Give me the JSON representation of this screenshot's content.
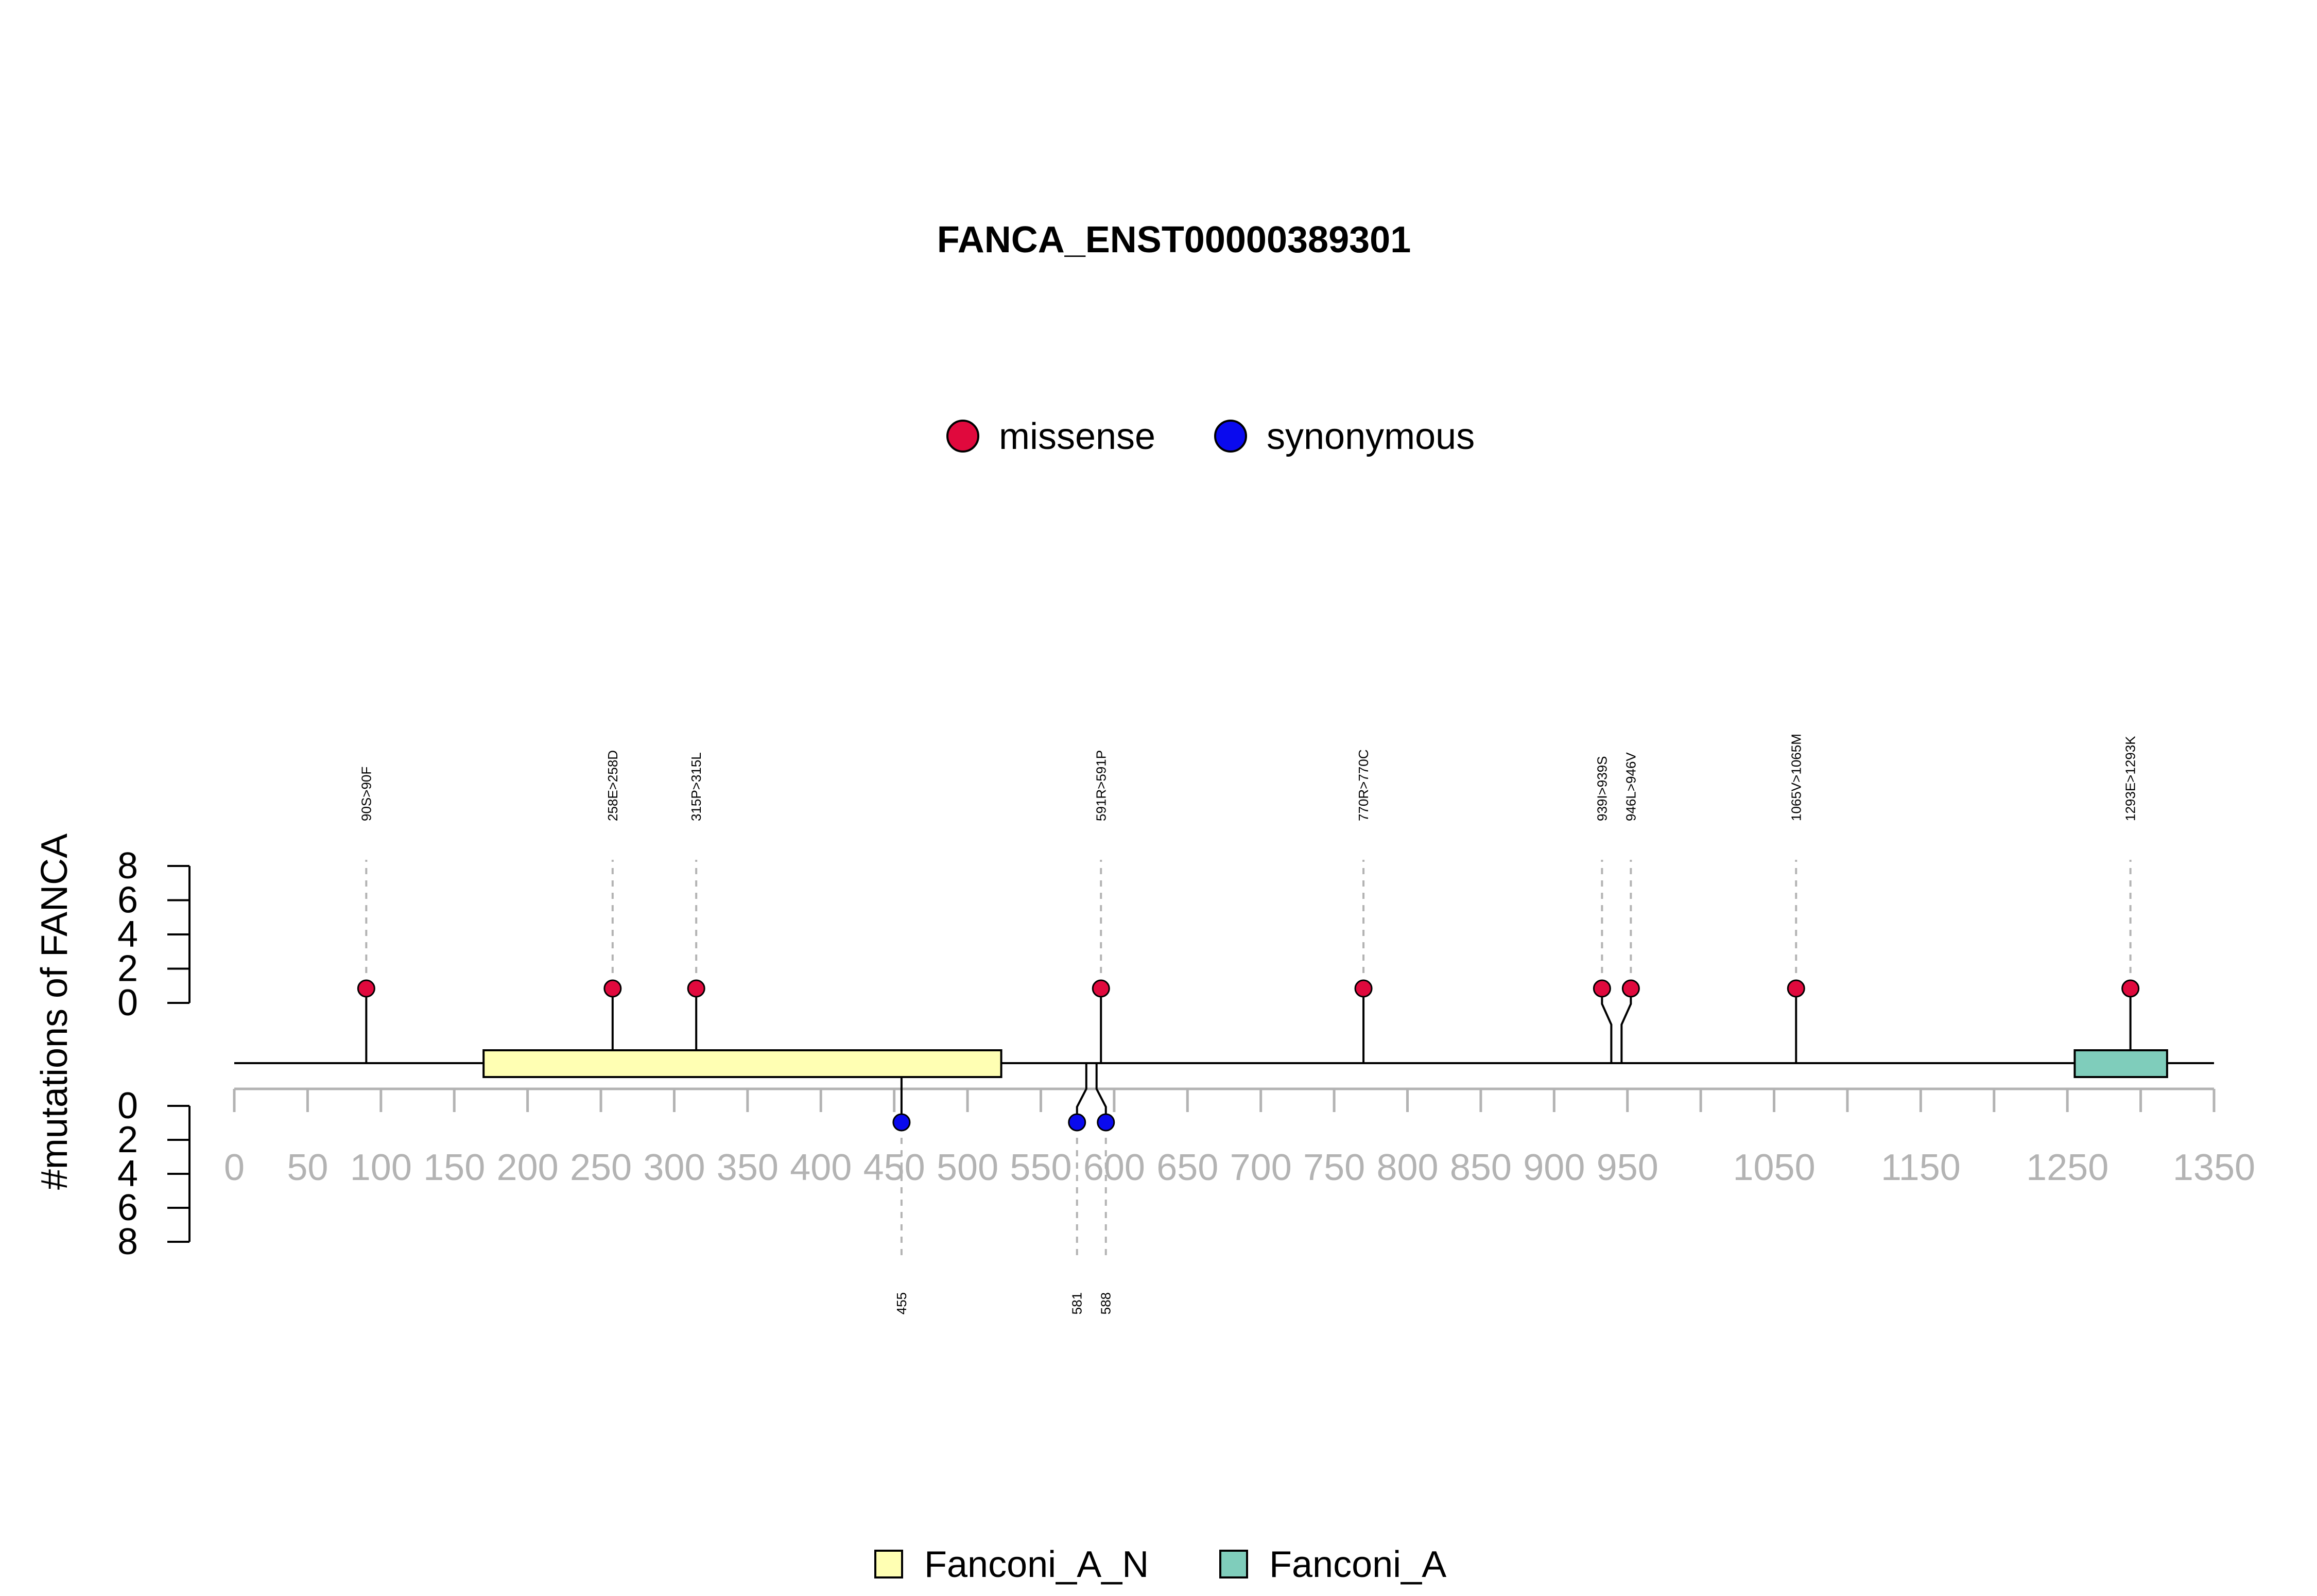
{
  "chart_data": {
    "type": "lollipop",
    "title": "FANCA_ENST00000389301",
    "ylabel": "#mutations of FANCA",
    "xlim": [
      0,
      1350
    ],
    "x_ticks": [
      0,
      50,
      100,
      150,
      200,
      250,
      300,
      350,
      400,
      450,
      500,
      550,
      600,
      650,
      700,
      750,
      800,
      850,
      900,
      950,
      1050,
      1150,
      1250,
      1350
    ],
    "x_minor_ticks": [
      0,
      50,
      100,
      150,
      200,
      250,
      300,
      350,
      400,
      450,
      500,
      550,
      600,
      650,
      700,
      750,
      800,
      850,
      900,
      950,
      1000,
      1050,
      1100,
      1150,
      1200,
      1250,
      1300,
      1350
    ],
    "y_ticks": [
      0,
      2,
      4,
      6,
      8
    ],
    "ylim": [
      0,
      8
    ],
    "legend_top": [
      {
        "label": "missense",
        "color": "#e0093d"
      },
      {
        "label": "synonymous",
        "color": "#0a0aee"
      }
    ],
    "legend_bottom": [
      {
        "label": "Fanconi_A_N",
        "color": "#ffffb3"
      },
      {
        "label": "Fanconi_A",
        "color": "#7fcdbb"
      }
    ],
    "domains": [
      {
        "name": "Fanconi_A_N",
        "start": 170,
        "end": 523,
        "color": "#ffffb3"
      },
      {
        "name": "Fanconi_A",
        "start": 1255,
        "end": 1318,
        "color": "#7fcdbb"
      }
    ],
    "mutations_top": [
      {
        "label": "90S>90F",
        "pos": 90,
        "count": 1,
        "type": "missense"
      },
      {
        "label": "258E>258D",
        "pos": 258,
        "count": 1,
        "type": "missense"
      },
      {
        "label": "315P>315L",
        "pos": 315,
        "count": 1,
        "type": "missense"
      },
      {
        "label": "591R>591P",
        "pos": 591,
        "count": 1,
        "type": "missense"
      },
      {
        "label": "770R>770C",
        "pos": 770,
        "count": 1,
        "type": "missense"
      },
      {
        "label": "939I>939S",
        "pos": 939,
        "count": 1,
        "type": "missense"
      },
      {
        "label": "946L>946V",
        "pos": 946,
        "count": 1,
        "type": "missense"
      },
      {
        "label": "1065V>1065M",
        "pos": 1065,
        "count": 1,
        "type": "missense"
      },
      {
        "label": "1293E>1293K",
        "pos": 1293,
        "count": 1,
        "type": "missense"
      }
    ],
    "mutations_bottom": [
      {
        "label": "455",
        "pos": 455,
        "count": 1,
        "type": "synonymous"
      },
      {
        "label": "581",
        "pos": 581,
        "count": 1,
        "type": "synonymous"
      },
      {
        "label": "588",
        "pos": 588,
        "count": 1,
        "type": "synonymous"
      }
    ],
    "colors": {
      "missense": "#e0093d",
      "synonymous": "#0a0aee",
      "axis_gray": "#b3b3b3"
    }
  }
}
